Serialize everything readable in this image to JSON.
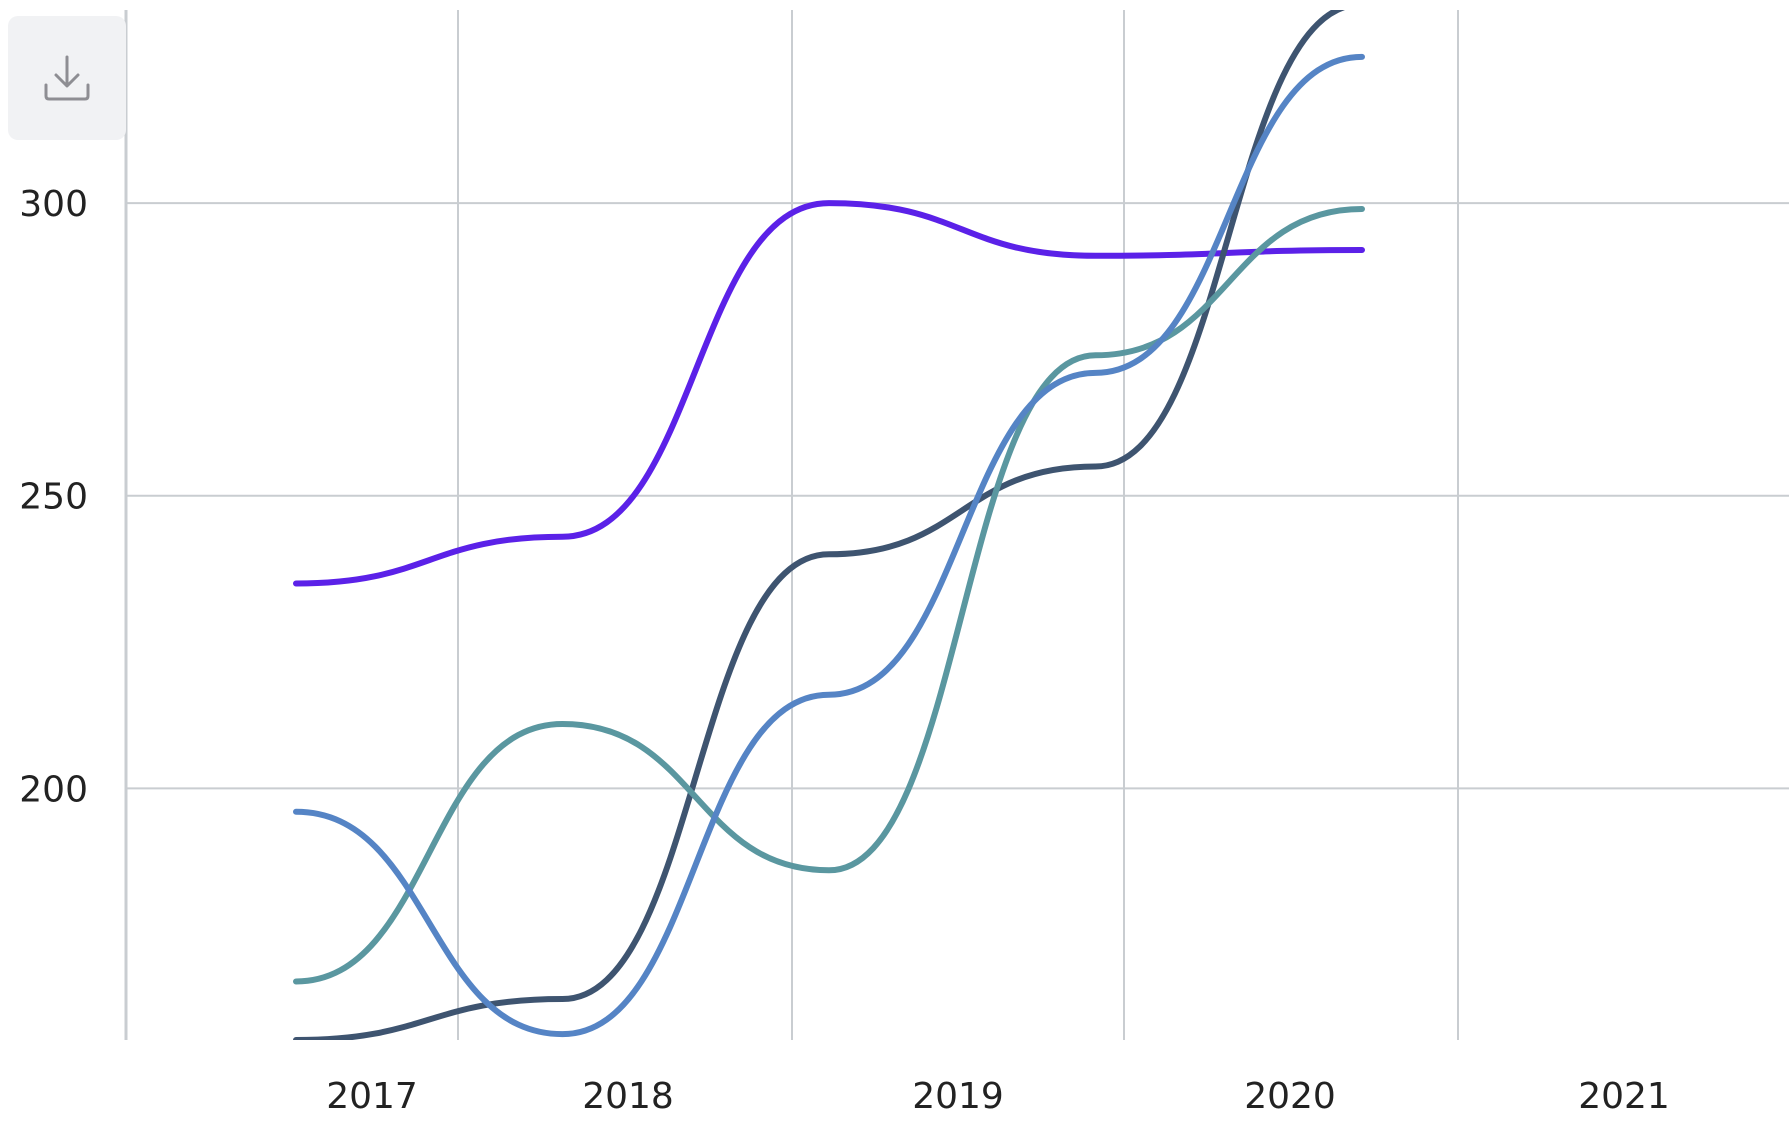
{
  "toolbar": {
    "download_icon": "download-icon"
  },
  "chart_data": {
    "type": "line",
    "title": "",
    "xlabel": "",
    "ylabel": "",
    "x": [
      2017,
      2018,
      2019,
      2020,
      2021
    ],
    "x_tick_labels": [
      "2017",
      "2018",
      "2019",
      "2020",
      "2021"
    ],
    "y_ticks": [
      200,
      250,
      300
    ],
    "y_tick_labels": [
      "200",
      "250",
      "300"
    ],
    "ylim": [
      157,
      333
    ],
    "grid": true,
    "legend": "none",
    "curve": "smooth",
    "series": [
      {
        "color": "#5b21e8",
        "values": [
          235,
          243,
          300,
          291,
          292
        ]
      },
      {
        "color": "#3e5470",
        "values": [
          157,
          164,
          240,
          255,
          334
        ]
      },
      {
        "color": "#5a97a0",
        "values": [
          167,
          211,
          186,
          274,
          299
        ]
      },
      {
        "color": "#5584c5",
        "values": [
          196,
          158,
          216,
          271,
          325
        ]
      }
    ]
  }
}
